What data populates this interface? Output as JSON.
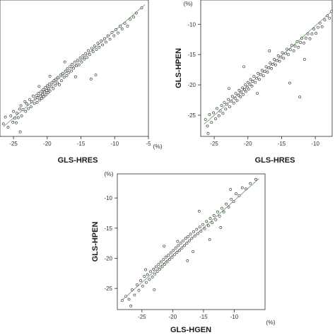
{
  "chart_data": [
    {
      "type": "scatter",
      "xlabel": "GLS-HRES",
      "x_unit": "(%)",
      "ylabel": "",
      "y_unit": "",
      "xlim": [
        -27,
        -5
      ],
      "ylim": [
        -28,
        -4
      ],
      "xticks": [
        "-25",
        "-20",
        "-15",
        "-10",
        "-5"
      ],
      "yticks": [],
      "fit_line": {
        "x": [
          -26.5,
          -5.5
        ],
        "y": [
          -26.3,
          -4.8
        ]
      },
      "points": [
        [
          -26.5,
          -25.8
        ],
        [
          -26.2,
          -24.6
        ],
        [
          -25.8,
          -26.4
        ],
        [
          -25.4,
          -24.4
        ],
        [
          -25.1,
          -25.5
        ],
        [
          -25.0,
          -23.6
        ],
        [
          -24.8,
          -24.8
        ],
        [
          -24.6,
          -25.6
        ],
        [
          -24.5,
          -23.9
        ],
        [
          -24.3,
          -24.7
        ],
        [
          -24.1,
          -23.2
        ],
        [
          -23.9,
          -22.6
        ],
        [
          -23.8,
          -24.4
        ],
        [
          -23.6,
          -23.3
        ],
        [
          -23.3,
          -21.9
        ],
        [
          -23.2,
          -23.6
        ],
        [
          -23.0,
          -22.3
        ],
        [
          -22.8,
          -23.1
        ],
        [
          -22.6,
          -21.5
        ],
        [
          -22.4,
          -22.8
        ],
        [
          -22.3,
          -21.9
        ],
        [
          -22.1,
          -20.9
        ],
        [
          -21.9,
          -22.2
        ],
        [
          -21.8,
          -21.4
        ],
        [
          -21.6,
          -20.8
        ],
        [
          -21.5,
          -22.0
        ],
        [
          -21.4,
          -21.2
        ],
        [
          -21.3,
          -20.4
        ],
        [
          -21.1,
          -21.6
        ],
        [
          -21.0,
          -20.9
        ],
        [
          -20.9,
          -20.1
        ],
        [
          -20.8,
          -21.3
        ],
        [
          -20.7,
          -20.6
        ],
        [
          -20.6,
          -19.8
        ],
        [
          -20.5,
          -21.0
        ],
        [
          -20.4,
          -20.2
        ],
        [
          -20.3,
          -19.4
        ],
        [
          -20.2,
          -20.7
        ],
        [
          -20.1,
          -19.9
        ],
        [
          -20.0,
          -19.1
        ],
        [
          -19.9,
          -20.3
        ],
        [
          -19.8,
          -19.6
        ],
        [
          -19.7,
          -18.8
        ],
        [
          -19.6,
          -20.0
        ],
        [
          -19.4,
          -19.2
        ],
        [
          -19.3,
          -18.5
        ],
        [
          -19.1,
          -19.6
        ],
        [
          -19.0,
          -18.2
        ],
        [
          -18.8,
          -19.0
        ],
        [
          -18.7,
          -17.9
        ],
        [
          -18.5,
          -18.6
        ],
        [
          -18.4,
          -17.6
        ],
        [
          -18.2,
          -18.9
        ],
        [
          -18.0,
          -17.2
        ],
        [
          -17.9,
          -18.2
        ],
        [
          -17.7,
          -16.9
        ],
        [
          -17.5,
          -17.6
        ],
        [
          -17.3,
          -16.5
        ],
        [
          -17.1,
          -17.3
        ],
        [
          -17.0,
          -16.1
        ],
        [
          -16.8,
          -16.8
        ],
        [
          -16.6,
          -15.7
        ],
        [
          -16.4,
          -16.5
        ],
        [
          -16.3,
          -15.3
        ],
        [
          -16.1,
          -16.0
        ],
        [
          -15.9,
          -14.9
        ],
        [
          -15.7,
          -15.6
        ],
        [
          -15.5,
          -14.6
        ],
        [
          -15.3,
          -15.4
        ],
        [
          -15.1,
          -14.2
        ],
        [
          -14.9,
          -14.9
        ],
        [
          -14.7,
          -13.8
        ],
        [
          -14.5,
          -14.4
        ],
        [
          -14.3,
          -13.4
        ],
        [
          -14.1,
          -14.1
        ],
        [
          -13.9,
          -12.9
        ],
        [
          -13.7,
          -13.6
        ],
        [
          -13.4,
          -12.5
        ],
        [
          -13.2,
          -13.1
        ],
        [
          -13.0,
          -12.1
        ],
        [
          -12.7,
          -12.7
        ],
        [
          -12.5,
          -11.6
        ],
        [
          -12.3,
          -12.3
        ],
        [
          -12.0,
          -11.2
        ],
        [
          -11.8,
          -11.9
        ],
        [
          -11.5,
          -10.8
        ],
        [
          -11.3,
          -11.4
        ],
        [
          -11.0,
          -10.3
        ],
        [
          -10.7,
          -10.9
        ],
        [
          -10.4,
          -9.7
        ],
        [
          -10.1,
          -10.3
        ],
        [
          -9.8,
          -9.2
        ],
        [
          -9.5,
          -9.8
        ],
        [
          -9.2,
          -8.6
        ],
        [
          -8.9,
          -9.1
        ],
        [
          -8.5,
          -8.1
        ],
        [
          -8.1,
          -8.6
        ],
        [
          -7.7,
          -7.4
        ],
        [
          -7.2,
          -7.0
        ],
        [
          -6.8,
          -6.3
        ],
        [
          -6.0,
          -5.4
        ],
        [
          -24.0,
          -27.2
        ],
        [
          -13.5,
          -17.9
        ],
        [
          -12.8,
          -17.2
        ],
        [
          -21.2,
          -19.2
        ],
        [
          -19.6,
          -17.4
        ],
        [
          -15.8,
          -17.5
        ],
        [
          -17.4,
          -14.9
        ]
      ]
    },
    {
      "type": "scatter",
      "xlabel": "GLS-HRES",
      "x_unit": "",
      "ylabel": "GLS-HPEN",
      "y_unit": "(%)",
      "xlim": [
        -27,
        -7.5
      ],
      "ylim": [
        -28.5,
        -6
      ],
      "xticks": [
        "-25",
        "-20",
        "-15",
        "-10"
      ],
      "yticks": [
        "-25",
        "-20",
        "-15",
        "-10"
      ],
      "fit_line": {
        "x": [
          -26.5,
          -7.5
        ],
        "y": [
          -26.5,
          -7.8
        ]
      },
      "points": [
        [
          -26.3,
          -25.7
        ],
        [
          -26.0,
          -26.8
        ],
        [
          -25.7,
          -24.9
        ],
        [
          -25.4,
          -26.2
        ],
        [
          -25.1,
          -24.6
        ],
        [
          -24.8,
          -25.6
        ],
        [
          -24.6,
          -23.9
        ],
        [
          -24.3,
          -25.1
        ],
        [
          -24.1,
          -24.3
        ],
        [
          -23.9,
          -23.4
        ],
        [
          -23.7,
          -24.7
        ],
        [
          -23.5,
          -22.9
        ],
        [
          -23.3,
          -24.0
        ],
        [
          -23.1,
          -23.2
        ],
        [
          -22.9,
          -22.4
        ],
        [
          -22.7,
          -23.6
        ],
        [
          -22.5,
          -22.7
        ],
        [
          -22.3,
          -21.9
        ],
        [
          -22.1,
          -23.0
        ],
        [
          -21.9,
          -22.2
        ],
        [
          -21.8,
          -21.4
        ],
        [
          -21.6,
          -22.6
        ],
        [
          -21.4,
          -21.7
        ],
        [
          -21.3,
          -20.9
        ],
        [
          -21.1,
          -22.0
        ],
        [
          -21.0,
          -21.2
        ],
        [
          -20.8,
          -20.5
        ],
        [
          -20.7,
          -21.6
        ],
        [
          -20.5,
          -20.8
        ],
        [
          -20.4,
          -20.0
        ],
        [
          -20.3,
          -21.1
        ],
        [
          -20.1,
          -20.4
        ],
        [
          -20.0,
          -19.6
        ],
        [
          -19.9,
          -20.7
        ],
        [
          -19.7,
          -19.9
        ],
        [
          -19.6,
          -19.1
        ],
        [
          -19.4,
          -20.2
        ],
        [
          -19.3,
          -19.4
        ],
        [
          -19.1,
          -18.6
        ],
        [
          -18.9,
          -19.6
        ],
        [
          -18.7,
          -18.9
        ],
        [
          -18.5,
          -18.1
        ],
        [
          -18.3,
          -19.1
        ],
        [
          -18.1,
          -18.3
        ],
        [
          -17.9,
          -17.6
        ],
        [
          -17.7,
          -18.5
        ],
        [
          -17.5,
          -17.8
        ],
        [
          -17.3,
          -17.0
        ],
        [
          -17.1,
          -17.9
        ],
        [
          -16.9,
          -17.2
        ],
        [
          -16.7,
          -16.4
        ],
        [
          -16.5,
          -17.3
        ],
        [
          -16.3,
          -16.6
        ],
        [
          -16.1,
          -15.8
        ],
        [
          -15.9,
          -16.7
        ],
        [
          -15.7,
          -16.0
        ],
        [
          -15.5,
          -15.2
        ],
        [
          -15.3,
          -16.1
        ],
        [
          -15.1,
          -15.4
        ],
        [
          -14.9,
          -14.7
        ],
        [
          -14.7,
          -15.6
        ],
        [
          -14.4,
          -14.8
        ],
        [
          -14.2,
          -14.1
        ],
        [
          -14.0,
          -15.0
        ],
        [
          -13.7,
          -14.2
        ],
        [
          -13.5,
          -13.5
        ],
        [
          -13.2,
          -14.4
        ],
        [
          -13.0,
          -13.6
        ],
        [
          -12.7,
          -12.9
        ],
        [
          -12.5,
          -13.8
        ],
        [
          -12.2,
          -13.0
        ],
        [
          -12.0,
          -12.3
        ],
        [
          -11.7,
          -13.1
        ],
        [
          -11.4,
          -12.3
        ],
        [
          -11.1,
          -11.6
        ],
        [
          -10.8,
          -12.4
        ],
        [
          -10.5,
          -11.6
        ],
        [
          -10.2,
          -10.8
        ],
        [
          -9.9,
          -11.5
        ],
        [
          -9.6,
          -10.5
        ],
        [
          -9.3,
          -9.8
        ],
        [
          -9.0,
          -10.4
        ],
        [
          -8.6,
          -9.3
        ],
        [
          -8.2,
          -8.6
        ],
        [
          -7.9,
          -9.0
        ],
        [
          -7.6,
          -7.9
        ],
        [
          -25.9,
          -28.0
        ],
        [
          -12.3,
          -22.0
        ],
        [
          -13.8,
          -19.7
        ],
        [
          -20.6,
          -17.0
        ],
        [
          -16.8,
          -14.4
        ],
        [
          -11.6,
          -15.8
        ],
        [
          -18.6,
          -21.4
        ],
        [
          -22.8,
          -20.6
        ]
      ]
    },
    {
      "type": "scatter",
      "xlabel": "GLS-HGEN",
      "x_unit": "(%)",
      "ylabel": "GLS-HPEN",
      "y_unit": "(%)",
      "xlim": [
        -29,
        -5
      ],
      "ylim": [
        -28.5,
        -6
      ],
      "xticks": [
        "-25",
        "-20",
        "-15",
        "-10"
      ],
      "yticks": [
        "-25",
        "-20",
        "-15",
        "-10"
      ],
      "fit_line": {
        "x": [
          -28.3,
          -6.0
        ],
        "y": [
          -27.0,
          -6.8
        ]
      },
      "points": [
        [
          -28.2,
          -27.0
        ],
        [
          -27.6,
          -26.3
        ],
        [
          -27.1,
          -26.8
        ],
        [
          -26.6,
          -25.2
        ],
        [
          -26.2,
          -26.1
        ],
        [
          -25.8,
          -24.4
        ],
        [
          -25.5,
          -25.3
        ],
        [
          -25.2,
          -23.7
        ],
        [
          -24.9,
          -24.6
        ],
        [
          -24.6,
          -23.0
        ],
        [
          -24.3,
          -24.0
        ],
        [
          -24.1,
          -22.7
        ],
        [
          -23.8,
          -23.5
        ],
        [
          -23.6,
          -22.2
        ],
        [
          -23.3,
          -23.1
        ],
        [
          -23.1,
          -21.8
        ],
        [
          -22.9,
          -22.6
        ],
        [
          -22.7,
          -21.4
        ],
        [
          -22.5,
          -22.2
        ],
        [
          -22.3,
          -21.0
        ],
        [
          -22.1,
          -21.8
        ],
        [
          -21.9,
          -20.6
        ],
        [
          -21.7,
          -21.4
        ],
        [
          -21.5,
          -20.2
        ],
        [
          -21.3,
          -21.0
        ],
        [
          -21.1,
          -19.8
        ],
        [
          -20.9,
          -20.6
        ],
        [
          -20.7,
          -19.5
        ],
        [
          -20.5,
          -20.2
        ],
        [
          -20.3,
          -19.1
        ],
        [
          -20.1,
          -19.8
        ],
        [
          -19.9,
          -18.7
        ],
        [
          -19.7,
          -19.4
        ],
        [
          -19.5,
          -18.3
        ],
        [
          -19.3,
          -19.0
        ],
        [
          -19.1,
          -17.9
        ],
        [
          -18.9,
          -18.7
        ],
        [
          -18.7,
          -17.5
        ],
        [
          -18.5,
          -18.3
        ],
        [
          -18.3,
          -17.1
        ],
        [
          -18.1,
          -17.9
        ],
        [
          -17.9,
          -16.7
        ],
        [
          -17.7,
          -17.5
        ],
        [
          -17.5,
          -16.4
        ],
        [
          -17.3,
          -17.1
        ],
        [
          -17.1,
          -16.0
        ],
        [
          -16.9,
          -16.7
        ],
        [
          -16.6,
          -15.6
        ],
        [
          -16.4,
          -16.3
        ],
        [
          -16.1,
          -15.2
        ],
        [
          -15.9,
          -15.9
        ],
        [
          -15.6,
          -14.8
        ],
        [
          -15.4,
          -15.5
        ],
        [
          -15.1,
          -14.4
        ],
        [
          -14.8,
          -15.1
        ],
        [
          -14.5,
          -13.9
        ],
        [
          -14.2,
          -14.6
        ],
        [
          -13.9,
          -13.4
        ],
        [
          -13.6,
          -14.1
        ],
        [
          -13.3,
          -12.9
        ],
        [
          -13.0,
          -13.6
        ],
        [
          -12.7,
          -12.3
        ],
        [
          -12.4,
          -13.0
        ],
        [
          -12.0,
          -11.7
        ],
        [
          -11.7,
          -12.3
        ],
        [
          -11.3,
          -11.0
        ],
        [
          -10.9,
          -11.5
        ],
        [
          -10.5,
          -10.2
        ],
        [
          -10.1,
          -10.6
        ],
        [
          -9.7,
          -9.3
        ],
        [
          -9.2,
          -9.6
        ],
        [
          -8.7,
          -8.3
        ],
        [
          -8.1,
          -8.5
        ],
        [
          -7.4,
          -7.6
        ],
        [
          -6.5,
          -6.9
        ],
        [
          -26.8,
          -27.9
        ],
        [
          -17.6,
          -20.4
        ],
        [
          -14.0,
          -16.9
        ],
        [
          -21.4,
          -18.0
        ],
        [
          -24.4,
          -21.9
        ],
        [
          -19.2,
          -17.2
        ],
        [
          -15.7,
          -12.2
        ],
        [
          -12.2,
          -14.9
        ],
        [
          -23.0,
          -25.2
        ],
        [
          -16.7,
          -18.9
        ],
        [
          -10.6,
          -8.6
        ]
      ]
    }
  ]
}
